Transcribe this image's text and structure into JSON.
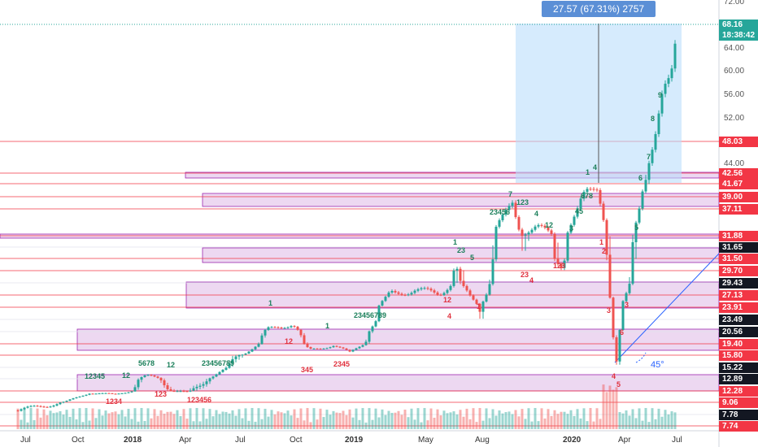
{
  "chart_data": {
    "type": "candlestick",
    "measure_label": "27.57 (67.31%) 2757",
    "angle_label": "45°",
    "last_price": "68.16",
    "countdown": "18:38:42",
    "y_ticks": [
      "72.00",
      "64.00",
      "60.00",
      "56.00",
      "52.00",
      "44.00",
      "37.11"
    ],
    "x_ticks": [
      "Jul",
      "Oct",
      "2018",
      "Apr",
      "Jul",
      "Oct",
      "2019",
      "May",
      "Aug",
      "2020",
      "Apr",
      "Jul"
    ],
    "levels": [
      {
        "label": "48.03",
        "color": "#f23645",
        "value": 48.03
      },
      {
        "label": "42.56",
        "color": "#f23645",
        "value": 42.56
      },
      {
        "label": "41.67",
        "color": "#f23645",
        "value": 41.67
      },
      {
        "label": "39.00",
        "color": "#f23645",
        "value": 39.0
      },
      {
        "label": "37.11",
        "color": "#f23645",
        "value": 37.11
      },
      {
        "label": "31.88",
        "color": "#f23645",
        "value": 31.88
      },
      {
        "label": "31.65",
        "color": "#131722",
        "value": 31.65
      },
      {
        "label": "31.50",
        "color": "#f23645",
        "value": 31.5
      },
      {
        "label": "29.70",
        "color": "#f23645",
        "value": 29.7
      },
      {
        "label": "29.43",
        "color": "#131722",
        "value": 29.43
      },
      {
        "label": "27.13",
        "color": "#f23645",
        "value": 27.13
      },
      {
        "label": "23.91",
        "color": "#f23645",
        "value": 23.91
      },
      {
        "label": "23.49",
        "color": "#131722",
        "value": 23.49
      },
      {
        "label": "20.56",
        "color": "#131722",
        "value": 20.56
      },
      {
        "label": "19.40",
        "color": "#f23645",
        "value": 19.4
      },
      {
        "label": "15.80",
        "color": "#f23645",
        "value": 15.8
      },
      {
        "label": "15.22",
        "color": "#131722",
        "value": 15.22
      },
      {
        "label": "12.89",
        "color": "#131722",
        "value": 12.89
      },
      {
        "label": "12.28",
        "color": "#f23645",
        "value": 12.28
      },
      {
        "label": "9.06",
        "color": "#f23645",
        "value": 9.06
      },
      {
        "label": "7.78",
        "color": "#131722",
        "value": 7.78
      },
      {
        "label": "7.74",
        "color": "#f23645",
        "value": 7.74
      }
    ],
    "sequence_labels_green": [
      "12345",
      "12",
      "5678",
      "12",
      "23456789",
      "1",
      "1",
      "23456789",
      "1",
      "23",
      "5",
      "23456",
      "7",
      "123",
      "4",
      "12",
      "3",
      "45",
      "678",
      "1",
      "4",
      "5",
      "6",
      "7",
      "8",
      "9"
    ],
    "sequence_labels_red": [
      "1234",
      "123",
      "123456",
      "12",
      "345",
      "2345",
      "12",
      "4",
      "1",
      "23",
      "4",
      "123",
      "1",
      "2",
      "3",
      "4",
      "5",
      "6",
      "3"
    ],
    "colors": {
      "up": "#26a69a",
      "down": "#ef5350",
      "zone": "#e1bee7",
      "measure": "#bbdefb",
      "last": "#26a69a"
    }
  }
}
